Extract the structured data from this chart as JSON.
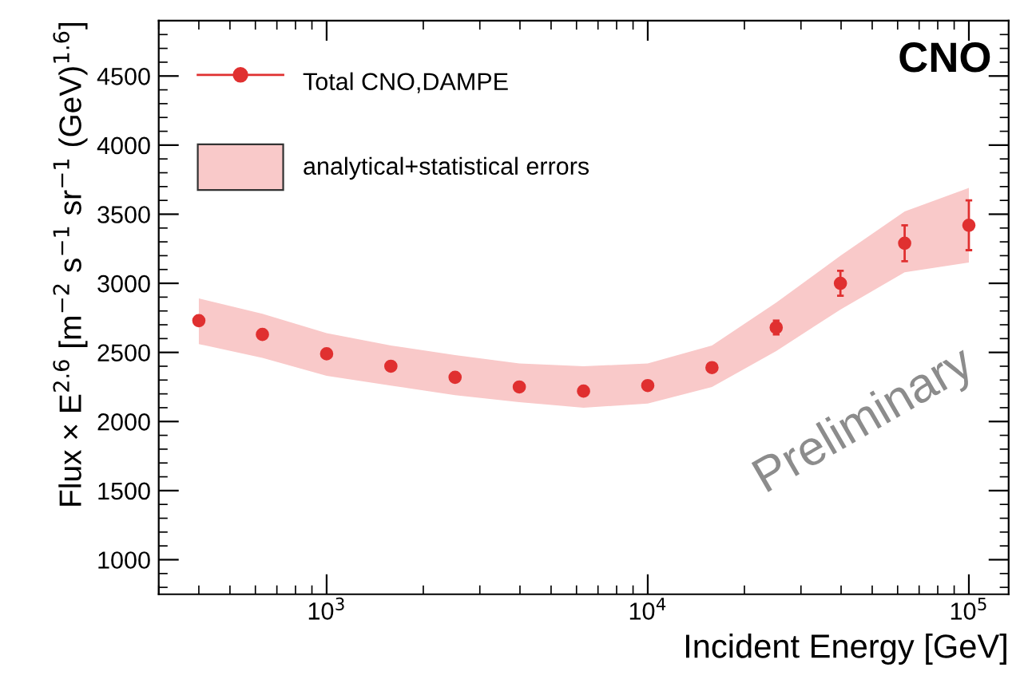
{
  "chart_data": {
    "type": "scatter",
    "xlabel": "Incident Energy [GeV]",
    "ylabel": "Flux × E$^{2.6}$ [m$^{−2}$ s$^{−1}$ sr$^{−1}$ (GeV)$^{1.6}$]",
    "x": [
      400,
      631,
      1000,
      1585,
      2512,
      3981,
      6310,
      10000,
      15850,
      25120,
      39810,
      63100,
      100000
    ],
    "series": [
      {
        "name": "Total CNO,DAMPE",
        "type": "scatter",
        "color": "#e03030",
        "values": [
          2730,
          2630,
          2490,
          2400,
          2320,
          2250,
          2220,
          2260,
          2390,
          2680,
          3000,
          3290,
          3420
        ],
        "errors": [
          null,
          null,
          null,
          null,
          null,
          null,
          null,
          null,
          null,
          50,
          90,
          130,
          180
        ]
      },
      {
        "name": "analytical+statistical errors",
        "type": "area",
        "color": "#f9c9c9",
        "values": [
          null,
          null,
          null,
          null,
          null,
          null,
          null,
          null,
          null,
          null,
          null,
          null,
          null
        ],
        "lower": [
          2560,
          2460,
          2330,
          2260,
          2190,
          2140,
          2100,
          2130,
          2250,
          2510,
          2810,
          3080,
          3150
        ],
        "upper": [
          2890,
          2780,
          2640,
          2550,
          2480,
          2420,
          2400,
          2420,
          2550,
          2860,
          3200,
          3520,
          3690
        ]
      }
    ],
    "annotations": [
      "CNO",
      "Preliminary"
    ],
    "log": "x",
    "xlim": [
      300,
      133000
    ],
    "xticks": [
      {
        "value": 1000,
        "label": "10$^{3}$"
      },
      {
        "value": 10000,
        "label": "10$^{4}$"
      },
      {
        "value": 100000,
        "label": "10$^{5}$"
      }
    ],
    "ylim": [
      750,
      4900
    ],
    "yticks": [
      1000,
      1500,
      2000,
      2500,
      3000,
      3500,
      4000,
      4500
    ],
    "grid": false,
    "legend": "top left",
    "marker": "circle"
  }
}
